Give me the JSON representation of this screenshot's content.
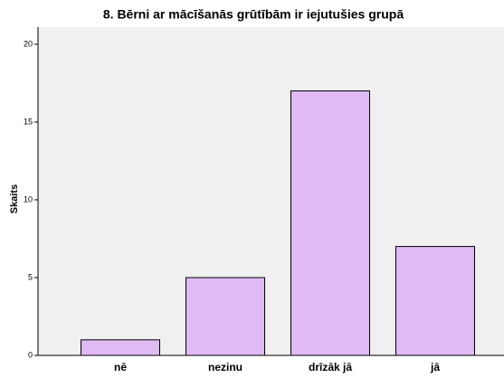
{
  "chart_data": {
    "type": "bar",
    "title": "8. Bērni ar mācīšanās grūtībām ir iejutušies grupā",
    "y_label": "Skaits",
    "categories": [
      "nē",
      "nezinu",
      "drīzāk jā",
      "jā"
    ],
    "values": [
      1,
      5,
      17,
      7
    ],
    "color": "#dfbaf3",
    "ylim": [
      0,
      21.1
    ],
    "yticks": [
      0,
      5,
      10,
      15,
      20
    ]
  }
}
